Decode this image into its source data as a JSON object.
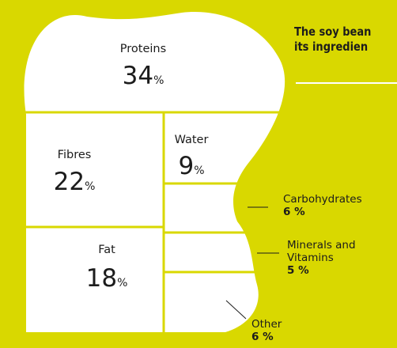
{
  "headline": {
    "line1": "The soy bean",
    "line2": "its ingredien"
  },
  "colors": {
    "background": "#d9d800",
    "bean_fill": "#ffffff",
    "divider": "#d9d800",
    "text": "#1c1c1c"
  },
  "chart_data": {
    "type": "treemap",
    "title": "",
    "unit": "%",
    "segments": [
      {
        "name": "Proteins",
        "value": 34,
        "label_position": "inside"
      },
      {
        "name": "Fibres",
        "value": 22,
        "label_position": "inside"
      },
      {
        "name": "Water",
        "value": 9,
        "label_position": "inside"
      },
      {
        "name": "Fat",
        "value": 18,
        "label_position": "inside"
      },
      {
        "name": "Carbohydrates",
        "value": 6,
        "label_position": "outside"
      },
      {
        "name": "Minerals and Vitamins",
        "lines": [
          "Minerals and",
          "Vitamins"
        ],
        "value": 5,
        "label_position": "outside"
      },
      {
        "name": "Other",
        "value": 6,
        "label_position": "outside"
      }
    ]
  }
}
